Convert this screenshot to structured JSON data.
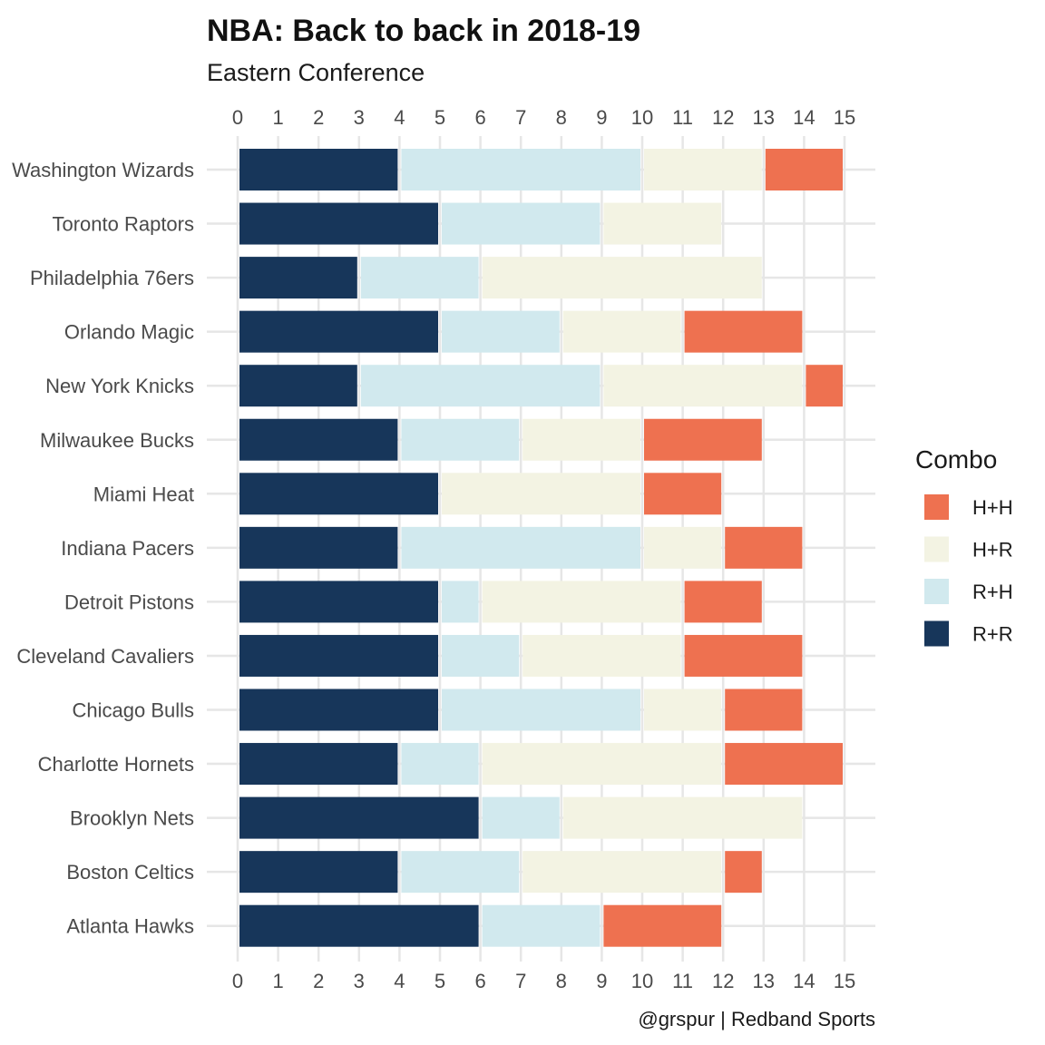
{
  "chart_data": {
    "type": "bar",
    "orientation": "horizontal",
    "stacked": true,
    "title": "NBA: Back to back in 2018-19",
    "subtitle": "Eastern Conference",
    "caption": "@grspur | Redband Sports",
    "xlim": [
      0,
      15
    ],
    "x_ticks": [
      0,
      1,
      2,
      3,
      4,
      5,
      6,
      7,
      8,
      9,
      10,
      11,
      12,
      13,
      14,
      15
    ],
    "x_axis_position": "top-and-bottom",
    "grid": true,
    "legend": {
      "title": "Combo",
      "placement": "right"
    },
    "categories": [
      "Washington Wizards",
      "Toronto Raptors",
      "Philadelphia 76ers",
      "Orlando Magic",
      "New York Knicks",
      "Milwaukee Bucks",
      "Miami Heat",
      "Indiana Pacers",
      "Detroit Pistons",
      "Cleveland Cavaliers",
      "Chicago Bulls",
      "Charlotte Hornets",
      "Brooklyn Nets",
      "Boston Celtics",
      "Atlanta Hawks"
    ],
    "stack_order": [
      "R+R",
      "R+H",
      "H+R",
      "H+H"
    ],
    "series": [
      {
        "name": "H+H",
        "color": "#ee7150",
        "values": [
          2,
          0,
          0,
          3,
          1,
          3,
          2,
          2,
          2,
          3,
          2,
          3,
          0,
          1,
          3
        ]
      },
      {
        "name": "H+R",
        "color": "#f3f3e3",
        "values": [
          3,
          3,
          7,
          3,
          5,
          3,
          5,
          2,
          5,
          4,
          2,
          6,
          6,
          5,
          0
        ]
      },
      {
        "name": "R+H",
        "color": "#d1e9ee",
        "values": [
          6,
          4,
          3,
          3,
          6,
          3,
          0,
          6,
          1,
          2,
          5,
          2,
          2,
          3,
          3
        ]
      },
      {
        "name": "R+R",
        "color": "#17365a",
        "values": [
          4,
          5,
          3,
          5,
          3,
          4,
          5,
          4,
          5,
          5,
          5,
          4,
          6,
          4,
          6
        ]
      }
    ]
  }
}
